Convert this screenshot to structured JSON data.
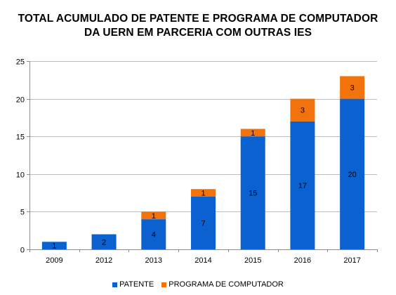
{
  "chart_data": {
    "type": "bar",
    "stacked": true,
    "title_lines": [
      "TOTAL ACUMULADO DE PATENTE E PROGRAMA DE COMPUTADOR",
      "DA UERN EM PARCERIA COM OUTRAS IES"
    ],
    "categories": [
      "2009",
      "2012",
      "2013",
      "2014",
      "2015",
      "2016",
      "2017"
    ],
    "series": [
      {
        "name": "PATENTE",
        "color": "#0b61cf",
        "values": [
          1,
          2,
          4,
          7,
          15,
          17,
          20
        ]
      },
      {
        "name": "PROGRAMA DE COMPUTADOR",
        "color": "#f2720c",
        "values": [
          0,
          0,
          1,
          1,
          1,
          3,
          3
        ]
      }
    ],
    "xlabel": "",
    "ylabel": "",
    "ylim": [
      0,
      25
    ],
    "yticks": [
      0,
      5,
      10,
      15,
      20,
      25
    ],
    "grid": true,
    "legend_position": "bottom"
  }
}
